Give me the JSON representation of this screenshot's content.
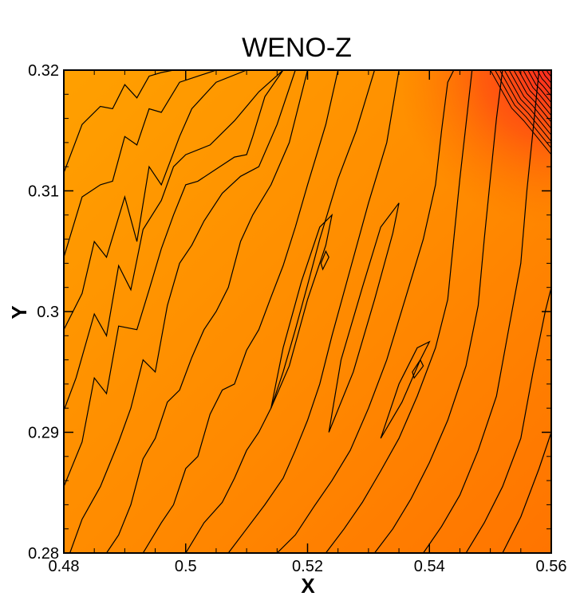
{
  "chart_data": {
    "type": "heatmap",
    "title": "WENO-Z",
    "xlabel": "X",
    "ylabel": "Y",
    "xlim": [
      0.48,
      0.56
    ],
    "ylim": [
      0.28,
      0.32
    ],
    "xticks": [
      0.48,
      0.5,
      0.52,
      0.54,
      0.56
    ],
    "xtick_labels": [
      "0.48",
      "0.5",
      "0.52",
      "0.54",
      "0.56"
    ],
    "yticks": [
      0.28,
      0.29,
      0.3,
      0.31,
      0.32
    ],
    "ytick_labels": [
      "0.28",
      "0.29",
      "0.3",
      "0.31",
      "0.32"
    ],
    "colormap": [
      "#ffa000",
      "#ff8a00",
      "#ff7400",
      "#ff2a20"
    ],
    "contour_color": "#000000",
    "grid": false,
    "contour_lines": [
      [
        [
          0.48,
          0.3115
        ],
        [
          0.483,
          0.3155
        ],
        [
          0.486,
          0.317
        ],
        [
          0.488,
          0.3168
        ],
        [
          0.49,
          0.3188
        ],
        [
          0.492,
          0.3177
        ],
        [
          0.494,
          0.3195
        ],
        [
          0.496,
          0.3198
        ],
        [
          0.498,
          0.32
        ]
      ],
      [
        [
          0.48,
          0.3045
        ],
        [
          0.483,
          0.3095
        ],
        [
          0.486,
          0.3105
        ],
        [
          0.488,
          0.3108
        ],
        [
          0.49,
          0.3145
        ],
        [
          0.492,
          0.3138
        ],
        [
          0.494,
          0.3168
        ],
        [
          0.496,
          0.3165
        ],
        [
          0.499,
          0.319
        ],
        [
          0.502,
          0.3195
        ],
        [
          0.505,
          0.32
        ]
      ],
      [
        [
          0.48,
          0.2985
        ],
        [
          0.483,
          0.3015
        ],
        [
          0.485,
          0.3058
        ],
        [
          0.487,
          0.3045
        ],
        [
          0.49,
          0.3095
        ],
        [
          0.492,
          0.3058
        ],
        [
          0.494,
          0.312
        ],
        [
          0.496,
          0.3105
        ],
        [
          0.499,
          0.3145
        ],
        [
          0.501,
          0.3168
        ],
        [
          0.505,
          0.319
        ],
        [
          0.51,
          0.32
        ]
      ],
      [
        [
          0.48,
          0.2918
        ],
        [
          0.482,
          0.2945
        ],
        [
          0.485,
          0.2998
        ],
        [
          0.487,
          0.298
        ],
        [
          0.489,
          0.3038
        ],
        [
          0.491,
          0.3018
        ],
        [
          0.493,
          0.3068
        ],
        [
          0.496,
          0.3092
        ],
        [
          0.498,
          0.312
        ],
        [
          0.5,
          0.313
        ],
        [
          0.504,
          0.3138
        ],
        [
          0.508,
          0.3158
        ],
        [
          0.512,
          0.3182
        ],
        [
          0.516,
          0.32
        ]
      ],
      [
        [
          0.48,
          0.2855
        ],
        [
          0.483,
          0.2892
        ],
        [
          0.485,
          0.2945
        ],
        [
          0.487,
          0.2932
        ],
        [
          0.489,
          0.2988
        ],
        [
          0.492,
          0.2985
        ],
        [
          0.494,
          0.3018
        ],
        [
          0.496,
          0.3052
        ],
        [
          0.498,
          0.308
        ],
        [
          0.5,
          0.3105
        ],
        [
          0.502,
          0.3108
        ],
        [
          0.505,
          0.3118
        ],
        [
          0.508,
          0.3128
        ],
        [
          0.51,
          0.313
        ],
        [
          0.511,
          0.3145
        ],
        [
          0.513,
          0.3178
        ],
        [
          0.516,
          0.32
        ]
      ],
      [
        [
          0.481,
          0.28
        ],
        [
          0.483,
          0.2828
        ],
        [
          0.486,
          0.2855
        ],
        [
          0.489,
          0.2892
        ],
        [
          0.491,
          0.292
        ],
        [
          0.493,
          0.296
        ],
        [
          0.495,
          0.295
        ],
        [
          0.497,
          0.3005
        ],
        [
          0.499,
          0.304
        ],
        [
          0.501,
          0.3055
        ],
        [
          0.503,
          0.3075
        ],
        [
          0.506,
          0.3098
        ],
        [
          0.509,
          0.3112
        ],
        [
          0.512,
          0.312
        ],
        [
          0.515,
          0.3155
        ],
        [
          0.518,
          0.32
        ]
      ],
      [
        [
          0.487,
          0.28
        ],
        [
          0.489,
          0.2815
        ],
        [
          0.491,
          0.284
        ],
        [
          0.493,
          0.2878
        ],
        [
          0.495,
          0.2895
        ],
        [
          0.497,
          0.2925
        ],
        [
          0.499,
          0.2935
        ],
        [
          0.501,
          0.2962
        ],
        [
          0.503,
          0.2985
        ],
        [
          0.505,
          0.3
        ],
        [
          0.507,
          0.302
        ],
        [
          0.509,
          0.3058
        ],
        [
          0.511,
          0.308
        ],
        [
          0.514,
          0.3105
        ],
        [
          0.517,
          0.314
        ],
        [
          0.52,
          0.32
        ]
      ],
      [
        [
          0.493,
          0.28
        ],
        [
          0.496,
          0.2825
        ],
        [
          0.498,
          0.284
        ],
        [
          0.5,
          0.287
        ],
        [
          0.502,
          0.288
        ],
        [
          0.504,
          0.2915
        ],
        [
          0.506,
          0.2935
        ],
        [
          0.508,
          0.294
        ],
        [
          0.51,
          0.2968
        ],
        [
          0.512,
          0.2985
        ],
        [
          0.514,
          0.3012
        ],
        [
          0.516,
          0.3038
        ],
        [
          0.518,
          0.307
        ],
        [
          0.52,
          0.3105
        ],
        [
          0.523,
          0.3155
        ],
        [
          0.525,
          0.32
        ]
      ],
      [
        [
          0.5,
          0.28
        ],
        [
          0.503,
          0.2825
        ],
        [
          0.506,
          0.2842
        ],
        [
          0.508,
          0.2862
        ],
        [
          0.51,
          0.2885
        ],
        [
          0.512,
          0.29
        ],
        [
          0.514,
          0.292
        ],
        [
          0.516,
          0.295
        ],
        [
          0.518,
          0.2985
        ],
        [
          0.52,
          0.3022
        ],
        [
          0.522,
          0.306
        ],
        [
          0.525,
          0.311
        ],
        [
          0.528,
          0.315
        ],
        [
          0.531,
          0.32
        ]
      ],
      [
        [
          0.507,
          0.28
        ],
        [
          0.51,
          0.282
        ],
        [
          0.513,
          0.284
        ],
        [
          0.516,
          0.2862
        ],
        [
          0.518,
          0.2885
        ],
        [
          0.52,
          0.291
        ],
        [
          0.522,
          0.294
        ],
        [
          0.524,
          0.298
        ],
        [
          0.527,
          0.3035
        ],
        [
          0.53,
          0.309
        ],
        [
          0.533,
          0.314
        ],
        [
          0.535,
          0.32
        ]
      ],
      [
        [
          0.515,
          0.28
        ],
        [
          0.518,
          0.2815
        ],
        [
          0.521,
          0.2838
        ],
        [
          0.524,
          0.286
        ],
        [
          0.527,
          0.2885
        ],
        [
          0.53,
          0.292
        ],
        [
          0.533,
          0.296
        ],
        [
          0.536,
          0.301
        ],
        [
          0.539,
          0.306
        ],
        [
          0.541,
          0.3105
        ],
        [
          0.542,
          0.315
        ],
        [
          0.543,
          0.319
        ],
        [
          0.544,
          0.32
        ]
      ],
      [
        [
          0.523,
          0.28
        ],
        [
          0.526,
          0.282
        ],
        [
          0.529,
          0.2842
        ],
        [
          0.532,
          0.2868
        ],
        [
          0.535,
          0.2895
        ],
        [
          0.538,
          0.293
        ],
        [
          0.541,
          0.297
        ],
        [
          0.543,
          0.301
        ],
        [
          0.544,
          0.306
        ],
        [
          0.545,
          0.311
        ],
        [
          0.546,
          0.3155
        ],
        [
          0.547,
          0.32
        ]
      ],
      [
        [
          0.531,
          0.28
        ],
        [
          0.534,
          0.282
        ],
        [
          0.537,
          0.2845
        ],
        [
          0.54,
          0.2875
        ],
        [
          0.543,
          0.291
        ],
        [
          0.546,
          0.2955
        ],
        [
          0.548,
          0.3005
        ],
        [
          0.549,
          0.306
        ],
        [
          0.55,
          0.311
        ],
        [
          0.551,
          0.316
        ],
        [
          0.552,
          0.32
        ]
      ],
      [
        [
          0.539,
          0.28
        ],
        [
          0.542,
          0.2822
        ],
        [
          0.545,
          0.2848
        ],
        [
          0.548,
          0.2885
        ],
        [
          0.551,
          0.293
        ],
        [
          0.553,
          0.2985
        ],
        [
          0.555,
          0.304
        ],
        [
          0.556,
          0.31
        ],
        [
          0.557,
          0.315
        ],
        [
          0.558,
          0.32
        ]
      ],
      [
        [
          0.546,
          0.28
        ],
        [
          0.549,
          0.2825
        ],
        [
          0.552,
          0.2855
        ],
        [
          0.555,
          0.2895
        ],
        [
          0.557,
          0.295
        ],
        [
          0.559,
          0.3
        ],
        [
          0.56,
          0.302
        ]
      ],
      [
        [
          0.552,
          0.28
        ],
        [
          0.555,
          0.283
        ],
        [
          0.558,
          0.287
        ],
        [
          0.56,
          0.29
        ]
      ]
    ],
    "closed_contours": [
      [
        [
          0.514,
          0.292
        ],
        [
          0.517,
          0.2955
        ],
        [
          0.52,
          0.301
        ],
        [
          0.523,
          0.3055
        ],
        [
          0.524,
          0.308
        ],
        [
          0.522,
          0.307
        ],
        [
          0.519,
          0.3025
        ],
        [
          0.516,
          0.297
        ],
        [
          0.514,
          0.292
        ]
      ],
      [
        [
          0.5235,
          0.29
        ],
        [
          0.5275,
          0.295
        ],
        [
          0.531,
          0.301
        ],
        [
          0.534,
          0.3065
        ],
        [
          0.535,
          0.309
        ],
        [
          0.532,
          0.307
        ],
        [
          0.529,
          0.302
        ],
        [
          0.5255,
          0.296
        ],
        [
          0.5235,
          0.29
        ]
      ],
      [
        [
          0.532,
          0.2895
        ],
        [
          0.5355,
          0.2925
        ],
        [
          0.5385,
          0.296
        ],
        [
          0.54,
          0.2975
        ],
        [
          0.538,
          0.297
        ],
        [
          0.535,
          0.294
        ],
        [
          0.532,
          0.2895
        ]
      ],
      [
        [
          0.5225,
          0.3035
        ],
        [
          0.5235,
          0.3045
        ],
        [
          0.523,
          0.305
        ],
        [
          0.5222,
          0.304
        ],
        [
          0.5225,
          0.3035
        ]
      ],
      [
        [
          0.5375,
          0.2945
        ],
        [
          0.539,
          0.2955
        ],
        [
          0.5385,
          0.296
        ],
        [
          0.5372,
          0.295
        ],
        [
          0.5375,
          0.2945
        ]
      ]
    ],
    "dense_contours_region": {
      "x": [
        0.55,
        0.56
      ],
      "y": [
        0.313,
        0.32
      ],
      "count": 14
    }
  }
}
